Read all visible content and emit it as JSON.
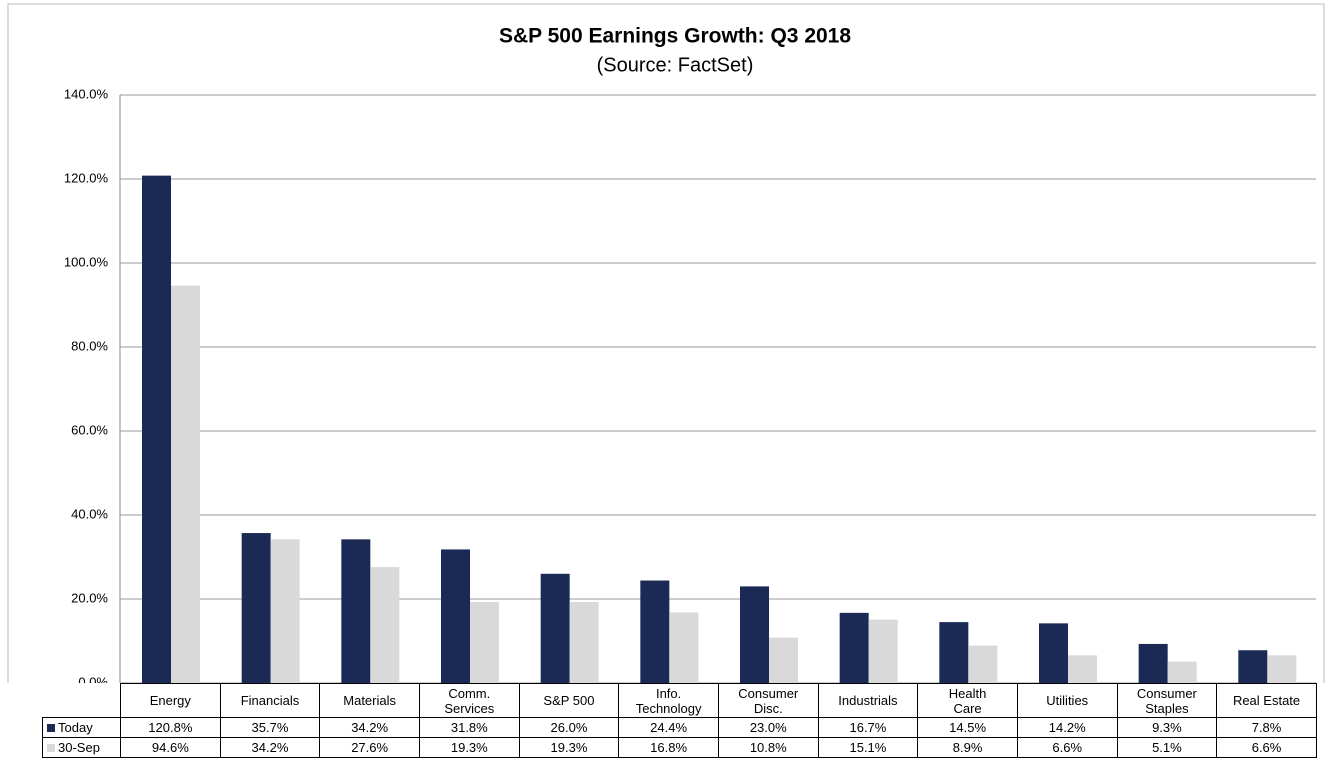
{
  "chart_data": {
    "type": "bar",
    "title": "S&P 500 Earnings Growth: Q3 2018",
    "subtitle": "(Source: FactSet)",
    "categories": [
      "Energy",
      "Financials",
      "Materials",
      "Comm.\nServices",
      "S&P 500",
      "Info.\nTechnology",
      "Consumer\nDisc.",
      "Industrials",
      "Health\nCare",
      "Utilities",
      "Consumer\nStaples",
      "Real Estate"
    ],
    "series": [
      {
        "name": "Today",
        "color": "#1b2a55",
        "values": [
          120.8,
          35.7,
          34.2,
          31.8,
          26.0,
          24.4,
          23.0,
          16.7,
          14.5,
          14.2,
          9.3,
          7.8
        ],
        "value_labels": [
          "120.8%",
          "35.7%",
          "34.2%",
          "31.8%",
          "26.0%",
          "24.4%",
          "23.0%",
          "16.7%",
          "14.5%",
          "14.2%",
          "9.3%",
          "7.8%"
        ]
      },
      {
        "name": "30-Sep",
        "color": "#d9d9d9",
        "values": [
          94.6,
          34.2,
          27.6,
          19.3,
          19.3,
          16.8,
          10.8,
          15.1,
          8.9,
          6.6,
          5.1,
          6.6
        ],
        "value_labels": [
          "94.6%",
          "34.2%",
          "27.6%",
          "19.3%",
          "19.3%",
          "16.8%",
          "10.8%",
          "15.1%",
          "8.9%",
          "6.6%",
          "5.1%",
          "6.6%"
        ]
      }
    ],
    "ylim": [
      0,
      140
    ],
    "yticks": [
      {
        "value": 0,
        "label": "0.0%"
      },
      {
        "value": 20,
        "label": "20.0%"
      },
      {
        "value": 40,
        "label": "40.0%"
      },
      {
        "value": 60,
        "label": "60.0%"
      },
      {
        "value": 80,
        "label": "80.0%"
      },
      {
        "value": 100,
        "label": "100.0%"
      },
      {
        "value": 120,
        "label": "120.0%"
      },
      {
        "value": 140,
        "label": "140.0%"
      }
    ],
    "grid": true
  }
}
